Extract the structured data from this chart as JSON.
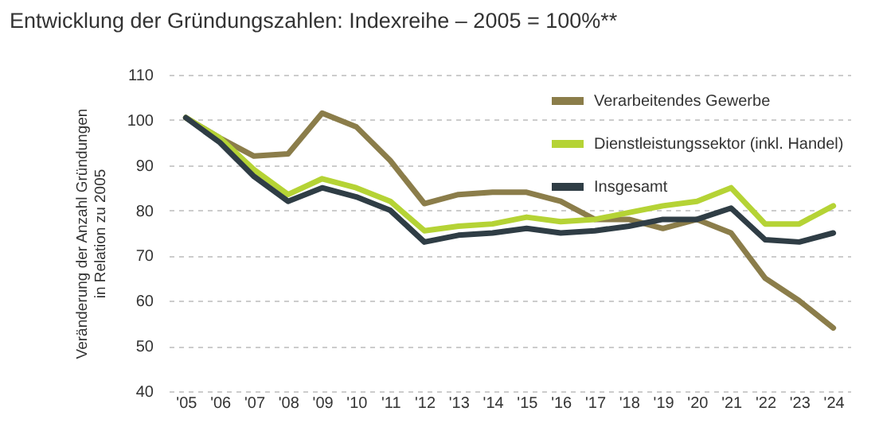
{
  "chart_data": {
    "type": "line",
    "title": "Entwicklung der Gründungszahlen: Indexreihe – 2005 = 100%**",
    "ylabel": "Veränderung der Anzahl Gründungen\nin Relation zu 2005",
    "categories": [
      "'05",
      "'06",
      "'07",
      "'08",
      "'09",
      "'10",
      "'11",
      "'12",
      "'13",
      "'14",
      "'15",
      "'16",
      "'17",
      "'18",
      "'19",
      "'20",
      "'21",
      "'22",
      "'23",
      "'24"
    ],
    "series": [
      {
        "name": "Verarbeitendes Gewerbe",
        "color": "#8b7d4a",
        "values": [
          100.5,
          96,
          92,
          92.5,
          101.5,
          98.5,
          91,
          81.5,
          83.5,
          84,
          84,
          82,
          78,
          78,
          76,
          78,
          75,
          65,
          60,
          54
        ]
      },
      {
        "name": "Dienstleistungssektor (inkl. Handel)",
        "color": "#b5d335",
        "values": [
          100.5,
          96,
          89,
          83.5,
          87,
          85,
          82,
          75.5,
          76.5,
          77,
          78.5,
          77.5,
          78,
          79.5,
          81,
          82,
          85,
          77,
          77,
          81
        ]
      },
      {
        "name": "Insgesamt",
        "color": "#2f3d45",
        "values": [
          100.5,
          95,
          87.5,
          82,
          85,
          83,
          80,
          73,
          74.5,
          75,
          76,
          75,
          75.5,
          76.5,
          78,
          78,
          80.5,
          73.5,
          73,
          75
        ]
      }
    ],
    "ylim": [
      40,
      110
    ],
    "yticks": [
      40,
      50,
      60,
      70,
      80,
      90,
      100,
      110
    ],
    "grid": "y",
    "legend": "top right",
    "marker": "none",
    "line_style": "solid"
  }
}
